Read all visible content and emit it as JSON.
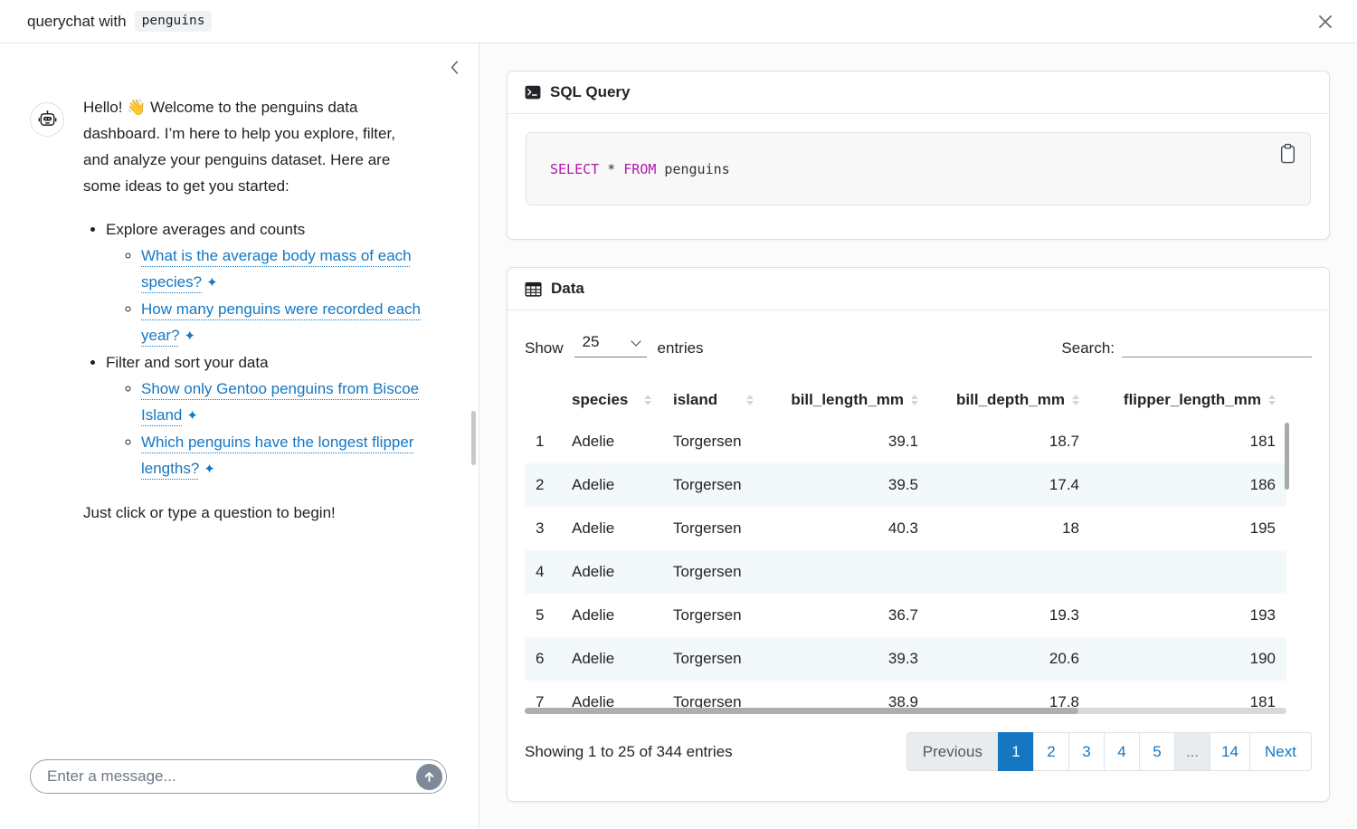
{
  "colors": {
    "accent": "#1577c2",
    "sql_keyword": "#b016b0",
    "active_page_text": "#ffffff",
    "stripe_row": "#f3f8fb"
  },
  "icons": {
    "close": "close-icon",
    "collapse": "chevron-left-icon",
    "robot": "robot-icon",
    "terminal": "terminal-icon",
    "table": "table-icon",
    "clipboard": "copy-icon",
    "send": "arrow-up-icon",
    "sparkle": "✦",
    "sort": "sort-arrows-icon",
    "select_chevron": "chevron-down-icon"
  },
  "titlebar": {
    "prefix": "querychat with",
    "dataset": "penguins"
  },
  "chat": {
    "message": {
      "text": "Hello! 👋 Welcome to the penguins data dashboard. I’m here to help you explore, filter, and analyze your penguins dataset. Here are some ideas to get you started:",
      "sections": [
        {
          "label": "Explore averages and counts",
          "links": [
            "What is the average body mass of each species?",
            "How many penguins were recorded each year?"
          ]
        },
        {
          "label": "Filter and sort your data",
          "links": [
            "Show only Gentoo penguins from Biscoe Island",
            "Which penguins have the longest flipper lengths?"
          ]
        }
      ],
      "closing": "Just click or type a question to begin!"
    },
    "input": {
      "placeholder": "Enter a message..."
    }
  },
  "sql": {
    "title": "SQL Query",
    "tokens": [
      {
        "text": "SELECT",
        "keyword": true
      },
      {
        "text": " * ",
        "keyword": false
      },
      {
        "text": "FROM",
        "keyword": true
      },
      {
        "text": " penguins",
        "keyword": false
      }
    ]
  },
  "data_card": {
    "title": "Data",
    "show_label": "Show",
    "page_size": "25",
    "entries_label": "entries",
    "search_label": "Search:",
    "search_value": "",
    "table": {
      "columns": [
        {
          "label": "species",
          "numeric": false
        },
        {
          "label": "island",
          "numeric": false
        },
        {
          "label": "bill_length_mm",
          "numeric": true
        },
        {
          "label": "bill_depth_mm",
          "numeric": true
        },
        {
          "label": "flipper_length_mm",
          "numeric": true
        }
      ],
      "rows": [
        {
          "idx": "1",
          "cells": [
            "Adelie",
            "Torgersen",
            "39.1",
            "18.7",
            "181"
          ]
        },
        {
          "idx": "2",
          "cells": [
            "Adelie",
            "Torgersen",
            "39.5",
            "17.4",
            "186"
          ]
        },
        {
          "idx": "3",
          "cells": [
            "Adelie",
            "Torgersen",
            "40.3",
            "18",
            "195"
          ]
        },
        {
          "idx": "4",
          "cells": [
            "Adelie",
            "Torgersen",
            "",
            "",
            ""
          ]
        },
        {
          "idx": "5",
          "cells": [
            "Adelie",
            "Torgersen",
            "36.7",
            "19.3",
            "193"
          ]
        },
        {
          "idx": "6",
          "cells": [
            "Adelie",
            "Torgersen",
            "39.3",
            "20.6",
            "190"
          ]
        },
        {
          "idx": "7",
          "cells": [
            "Adelie",
            "Torgersen",
            "38.9",
            "17.8",
            "181"
          ]
        }
      ]
    },
    "summary": "Showing 1 to 25 of 344 entries",
    "pagination": [
      {
        "label": "Previous",
        "state": "disabled"
      },
      {
        "label": "1",
        "state": "active"
      },
      {
        "label": "2",
        "state": "page"
      },
      {
        "label": "3",
        "state": "page"
      },
      {
        "label": "4",
        "state": "page"
      },
      {
        "label": "5",
        "state": "page"
      },
      {
        "label": "...",
        "state": "ellipsis"
      },
      {
        "label": "14",
        "state": "page"
      },
      {
        "label": "Next",
        "state": "page"
      }
    ]
  }
}
